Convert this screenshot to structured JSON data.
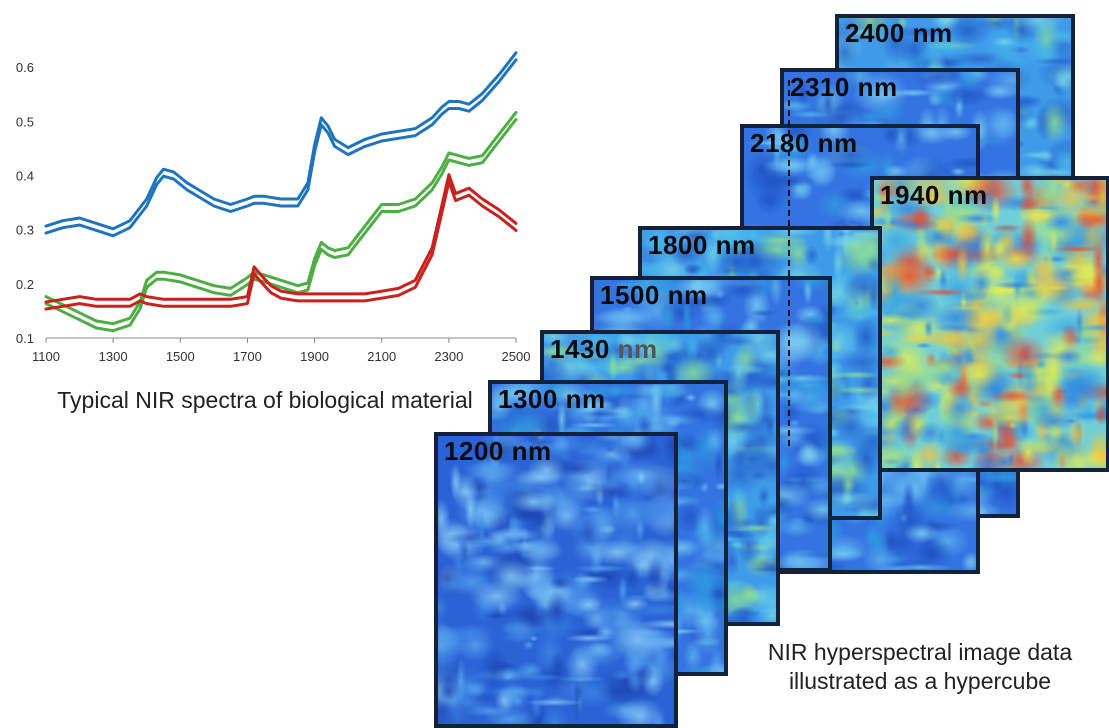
{
  "chart_data": {
    "type": "line",
    "xlim": [
      1100,
      2500
    ],
    "ylim": [
      0.1,
      0.65
    ],
    "xticks": [
      1100,
      1300,
      1500,
      1700,
      1900,
      2100,
      2300,
      2500
    ],
    "yticks": [
      0.1,
      0.2,
      0.3,
      0.4,
      0.5,
      0.6
    ],
    "xtick_labels": [
      "1100",
      "1300",
      "1500",
      "1700",
      "1900",
      "2100",
      "2300",
      "2500"
    ],
    "ytick_labels": [
      "0.1",
      "0.2",
      "0.3",
      "0.4",
      "0.5",
      "0.6"
    ],
    "grid": false,
    "series": [
      {
        "color": "#1f74c0",
        "x": [
          1100,
          1150,
          1200,
          1250,
          1300,
          1350,
          1400,
          1430,
          1450,
          1480,
          1520,
          1560,
          1600,
          1650,
          1700,
          1720,
          1750,
          1800,
          1850,
          1880,
          1900,
          1920,
          1940,
          1960,
          2000,
          2050,
          2100,
          2150,
          2200,
          2250,
          2280,
          2300,
          2330,
          2360,
          2400,
          2450,
          2500
        ],
        "values": [
          0.3,
          0.31,
          0.315,
          0.305,
          0.295,
          0.31,
          0.35,
          0.39,
          0.405,
          0.4,
          0.38,
          0.365,
          0.35,
          0.34,
          0.35,
          0.355,
          0.355,
          0.35,
          0.35,
          0.38,
          0.45,
          0.5,
          0.485,
          0.46,
          0.445,
          0.46,
          0.47,
          0.475,
          0.48,
          0.5,
          0.52,
          0.53,
          0.53,
          0.525,
          0.545,
          0.58,
          0.62
        ]
      },
      {
        "color": "#4fad45",
        "x": [
          1100,
          1150,
          1200,
          1250,
          1300,
          1350,
          1380,
          1400,
          1430,
          1450,
          1500,
          1550,
          1600,
          1650,
          1700,
          1720,
          1750,
          1800,
          1850,
          1880,
          1900,
          1920,
          1940,
          1960,
          2000,
          2050,
          2100,
          2150,
          2200,
          2250,
          2280,
          2300,
          2330,
          2360,
          2400,
          2450,
          2500
        ],
        "values": [
          0.17,
          0.155,
          0.14,
          0.125,
          0.12,
          0.13,
          0.16,
          0.2,
          0.215,
          0.215,
          0.21,
          0.2,
          0.19,
          0.185,
          0.205,
          0.215,
          0.21,
          0.2,
          0.19,
          0.195,
          0.24,
          0.27,
          0.26,
          0.255,
          0.26,
          0.3,
          0.34,
          0.34,
          0.35,
          0.38,
          0.41,
          0.435,
          0.43,
          0.425,
          0.43,
          0.47,
          0.51
        ]
      },
      {
        "color": "#c8211e",
        "x": [
          1100,
          1150,
          1200,
          1250,
          1300,
          1350,
          1380,
          1400,
          1450,
          1500,
          1550,
          1600,
          1650,
          1700,
          1720,
          1740,
          1770,
          1800,
          1850,
          1900,
          1950,
          2000,
          2050,
          2100,
          2150,
          2200,
          2250,
          2280,
          2300,
          2320,
          2340,
          2360,
          2400,
          2450,
          2500
        ],
        "values": [
          0.16,
          0.165,
          0.17,
          0.165,
          0.165,
          0.165,
          0.175,
          0.17,
          0.165,
          0.165,
          0.165,
          0.165,
          0.165,
          0.17,
          0.225,
          0.21,
          0.19,
          0.18,
          0.175,
          0.175,
          0.175,
          0.175,
          0.175,
          0.18,
          0.185,
          0.2,
          0.26,
          0.34,
          0.395,
          0.36,
          0.365,
          0.37,
          0.35,
          0.33,
          0.305
        ]
      }
    ]
  },
  "captions": {
    "spectra": "Typical NIR spectra of biological material",
    "hypercube": "NIR hyperspectral image data illustrated as a hypercube"
  },
  "bands": [
    {
      "label": "2400 nm",
      "palette": "mid"
    },
    {
      "label": "2310 nm",
      "palette": "blue"
    },
    {
      "label": "2180 nm",
      "palette": "blue"
    },
    {
      "label": "1940 nm",
      "palette": "hot"
    },
    {
      "label": "1800 nm",
      "palette": "mid"
    },
    {
      "label": "1500 nm",
      "palette": "blue"
    },
    {
      "label": "1430",
      "label_suffix": "nm",
      "palette": "mid"
    },
    {
      "label": "1300 nm",
      "palette": "blue"
    },
    {
      "label": "1200 nm",
      "palette": "deep"
    }
  ]
}
